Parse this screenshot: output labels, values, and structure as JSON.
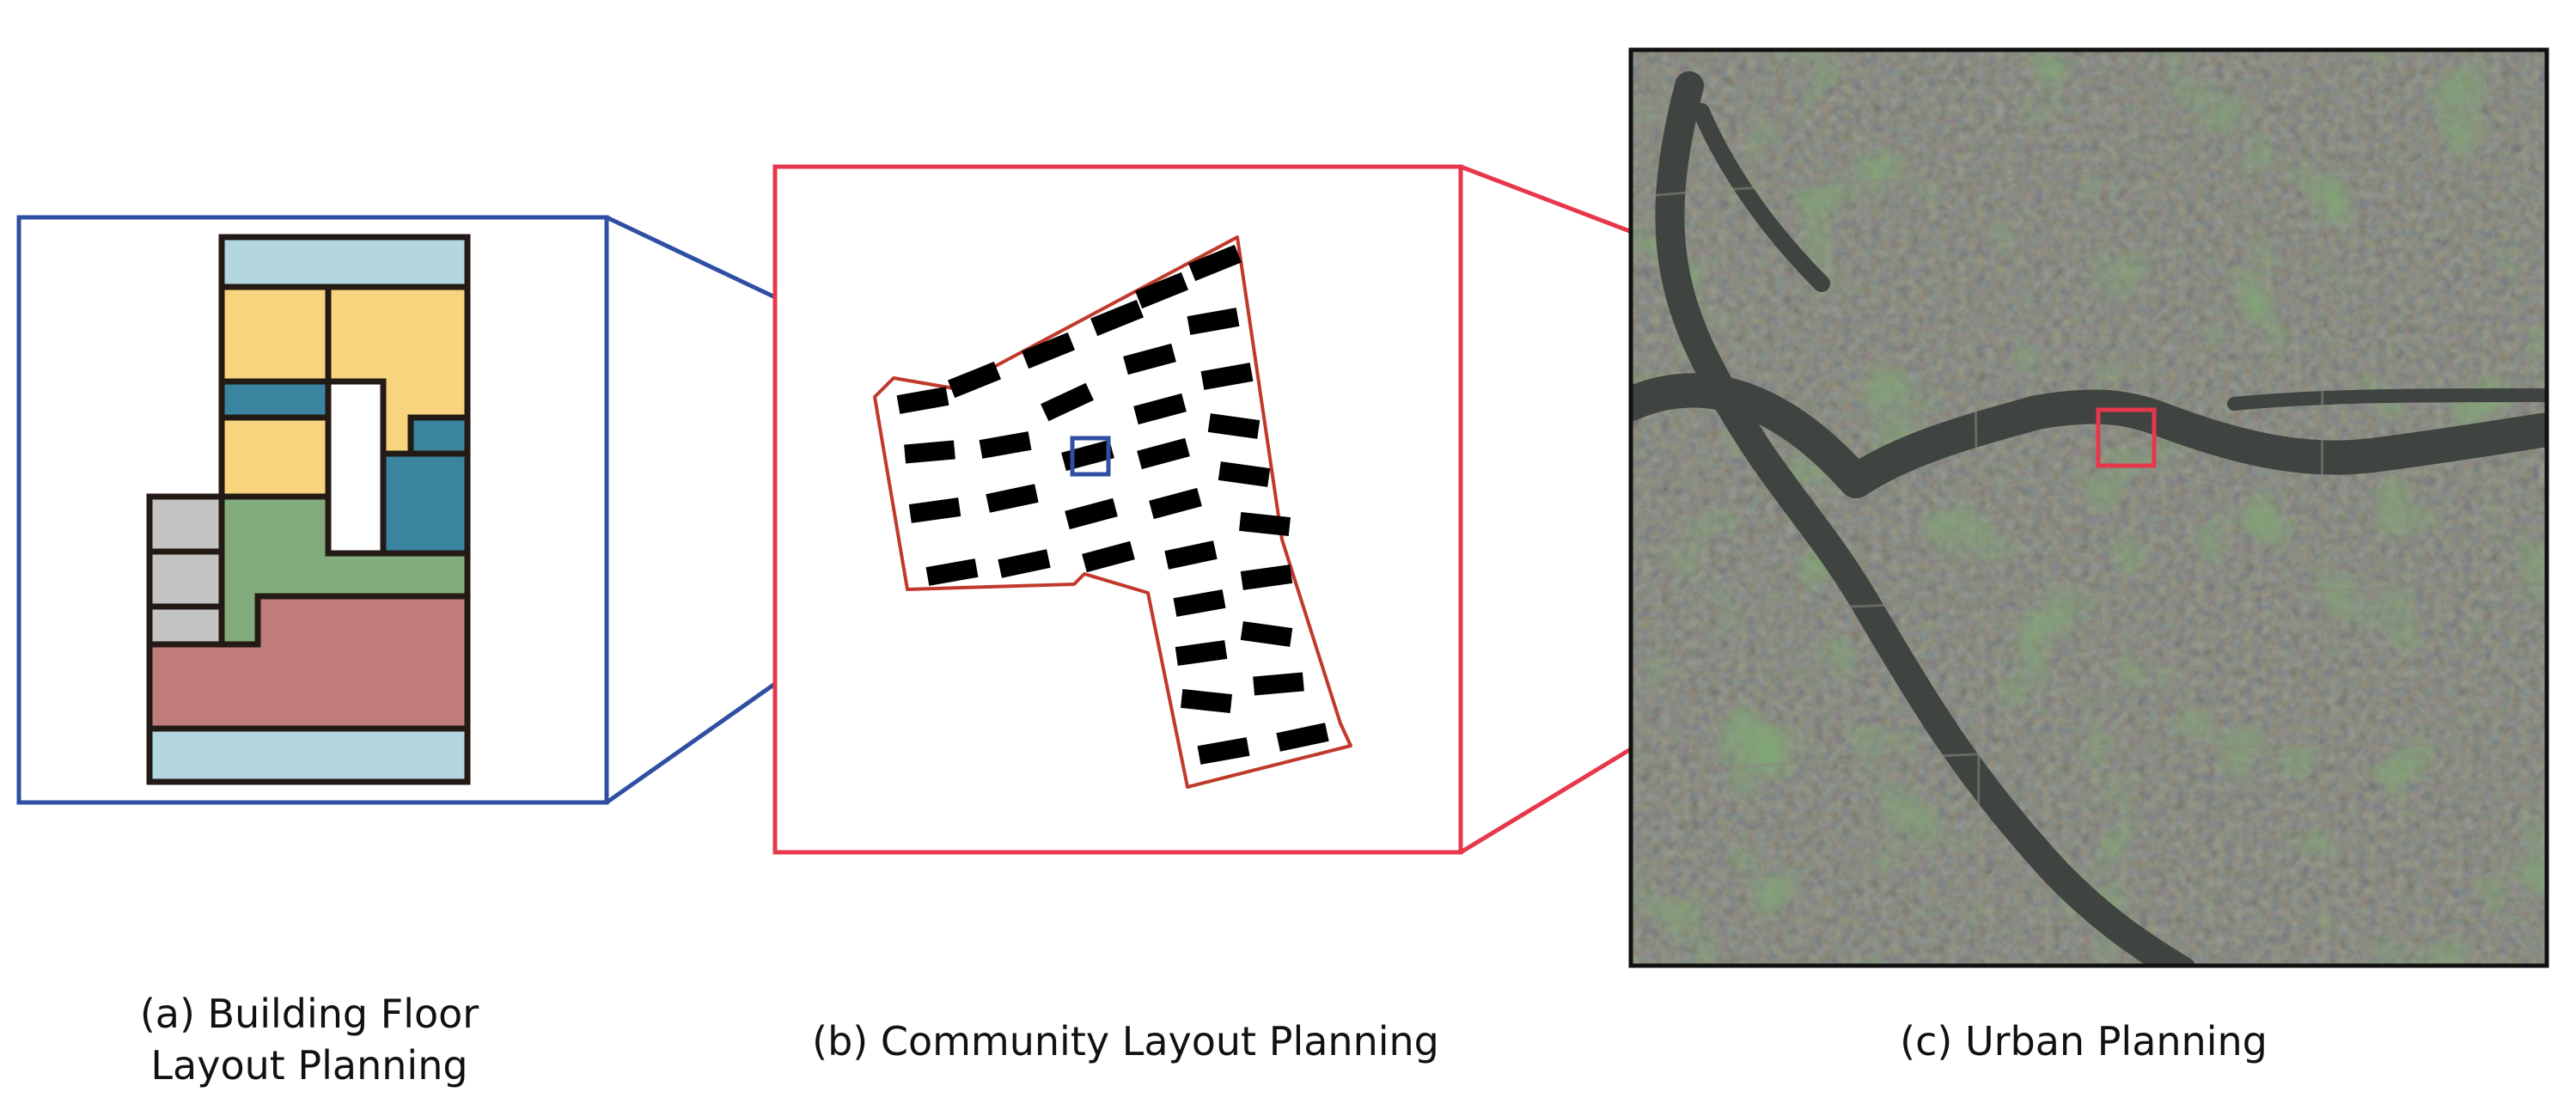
{
  "captions": {
    "a_line1": "(a) Building Floor",
    "a_line2": "Layout Planning",
    "b": "(b) Community Layout Planning",
    "c": "(c) Urban Planning"
  },
  "colors": {
    "inset_blue": "#2f4fa3",
    "inset_red": "#e8374b",
    "parcel_outline": "#c0392b",
    "room_light_blue": "#b3d6e1",
    "room_yellow": "#f8d47e",
    "room_teal": "#3a849f",
    "room_white": "#ffffff",
    "room_grey": "#c3c3c3",
    "room_green": "#83ac7c",
    "room_rose": "#c07c7b",
    "wall": "#231a16",
    "building_footprint": "#000000",
    "satellite_base": "#3d4136",
    "river": "#3f4440"
  }
}
